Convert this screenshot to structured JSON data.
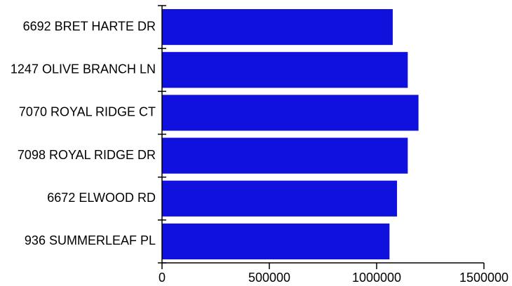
{
  "chart_data": {
    "type": "bar",
    "orientation": "horizontal",
    "categories": [
      "6692 BRET HARTE DR",
      "1247 OLIVE BRANCH LN",
      "7070 ROYAL RIDGE CT",
      "7098 ROYAL RIDGE DR",
      "6672 ELWOOD RD",
      "936 SUMMERLEAF PL"
    ],
    "values": [
      1075000,
      1145000,
      1195000,
      1145000,
      1095000,
      1060000
    ],
    "xlim": [
      0,
      1500000
    ],
    "x_ticks": [
      0,
      500000,
      1000000,
      1500000
    ],
    "x_tick_labels": [
      "0",
      "500000",
      "1000000",
      "1500000"
    ],
    "title": "",
    "xlabel": "",
    "ylabel": "",
    "grid": false,
    "colors": {
      "bar": "#1111dd",
      "axis": "#000000"
    }
  }
}
